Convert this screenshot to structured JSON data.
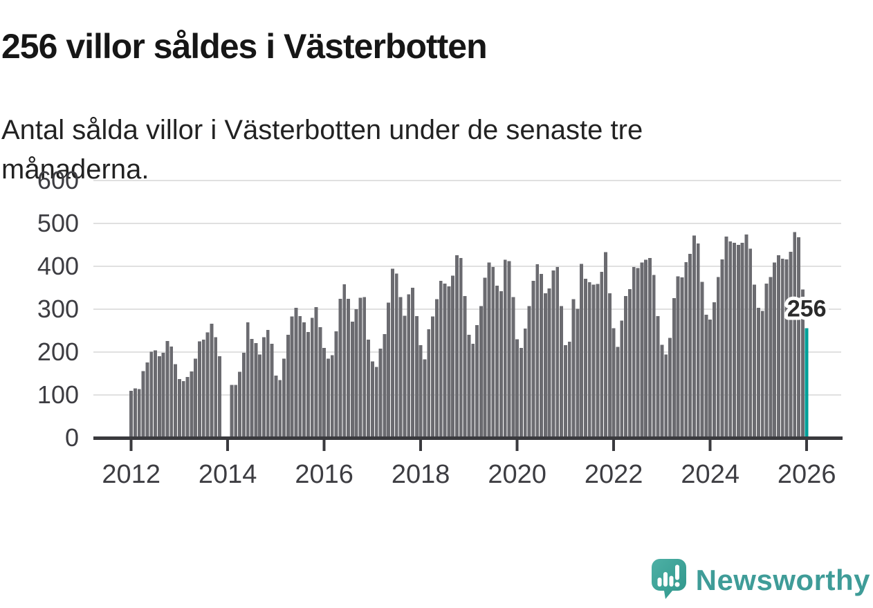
{
  "chart_data": {
    "type": "bar",
    "title": "256 villor såldes i Västerbotten",
    "subtitle": "Antal sålda villor i Västerbotten under de senaste tre månaderna.",
    "unit": "sålda villor (rullande 3 månader)",
    "x_monthly_start": "2012-01",
    "x_monthly_end": "2026-01",
    "missing_months": [
      "2013-12",
      "2014-01"
    ],
    "values": [
      110,
      115,
      114,
      156,
      176,
      201,
      204,
      190,
      198,
      226,
      213,
      172,
      137,
      132,
      142,
      155,
      185,
      225,
      229,
      246,
      266,
      235,
      190,
      null,
      null,
      123,
      123,
      154,
      198,
      269,
      231,
      221,
      194,
      235,
      252,
      219,
      145,
      135,
      185,
      240,
      283,
      303,
      284,
      269,
      247,
      280,
      305,
      258,
      210,
      185,
      193,
      248,
      324,
      358,
      324,
      271,
      300,
      327,
      328,
      229,
      178,
      165,
      208,
      242,
      315,
      394,
      383,
      328,
      285,
      335,
      350,
      284,
      216,
      183,
      253,
      283,
      323,
      366,
      360,
      353,
      378,
      426,
      419,
      331,
      240,
      219,
      263,
      307,
      373,
      409,
      398,
      355,
      342,
      415,
      412,
      328,
      230,
      210,
      255,
      307,
      366,
      405,
      382,
      337,
      348,
      390,
      398,
      307,
      216,
      224,
      323,
      301,
      406,
      371,
      363,
      357,
      359,
      387,
      433,
      337,
      256,
      212,
      273,
      331,
      347,
      398,
      396,
      409,
      415,
      419,
      380,
      284,
      217,
      194,
      233,
      326,
      377,
      374,
      410,
      429,
      472,
      453,
      364,
      287,
      276,
      316,
      375,
      416,
      469,
      458,
      455,
      450,
      455,
      474,
      441,
      357,
      303,
      296,
      360,
      375,
      409,
      426,
      418,
      416,
      434,
      480,
      468,
      346,
      256
    ],
    "highlight_index": 168,
    "highlight_value": 256,
    "annotation": "256",
    "ylim": [
      0,
      600
    ],
    "yticks": [
      0,
      100,
      200,
      300,
      400,
      500,
      600
    ],
    "xticks": [
      2012,
      2014,
      2016,
      2018,
      2020,
      2022,
      2024,
      2026
    ],
    "grid": "horizontal",
    "legend": "none",
    "bar_color": "#6b6b70",
    "highlight_color": "#00a099",
    "grid_color": "#e0e0e0",
    "axis_color": "#3a3a3e",
    "tick_label_color": "#3d3d42",
    "annotation_color": "#2b2b2b"
  },
  "footer": {
    "brand": "Newsworthy",
    "brand_color": "#3f9c98"
  }
}
